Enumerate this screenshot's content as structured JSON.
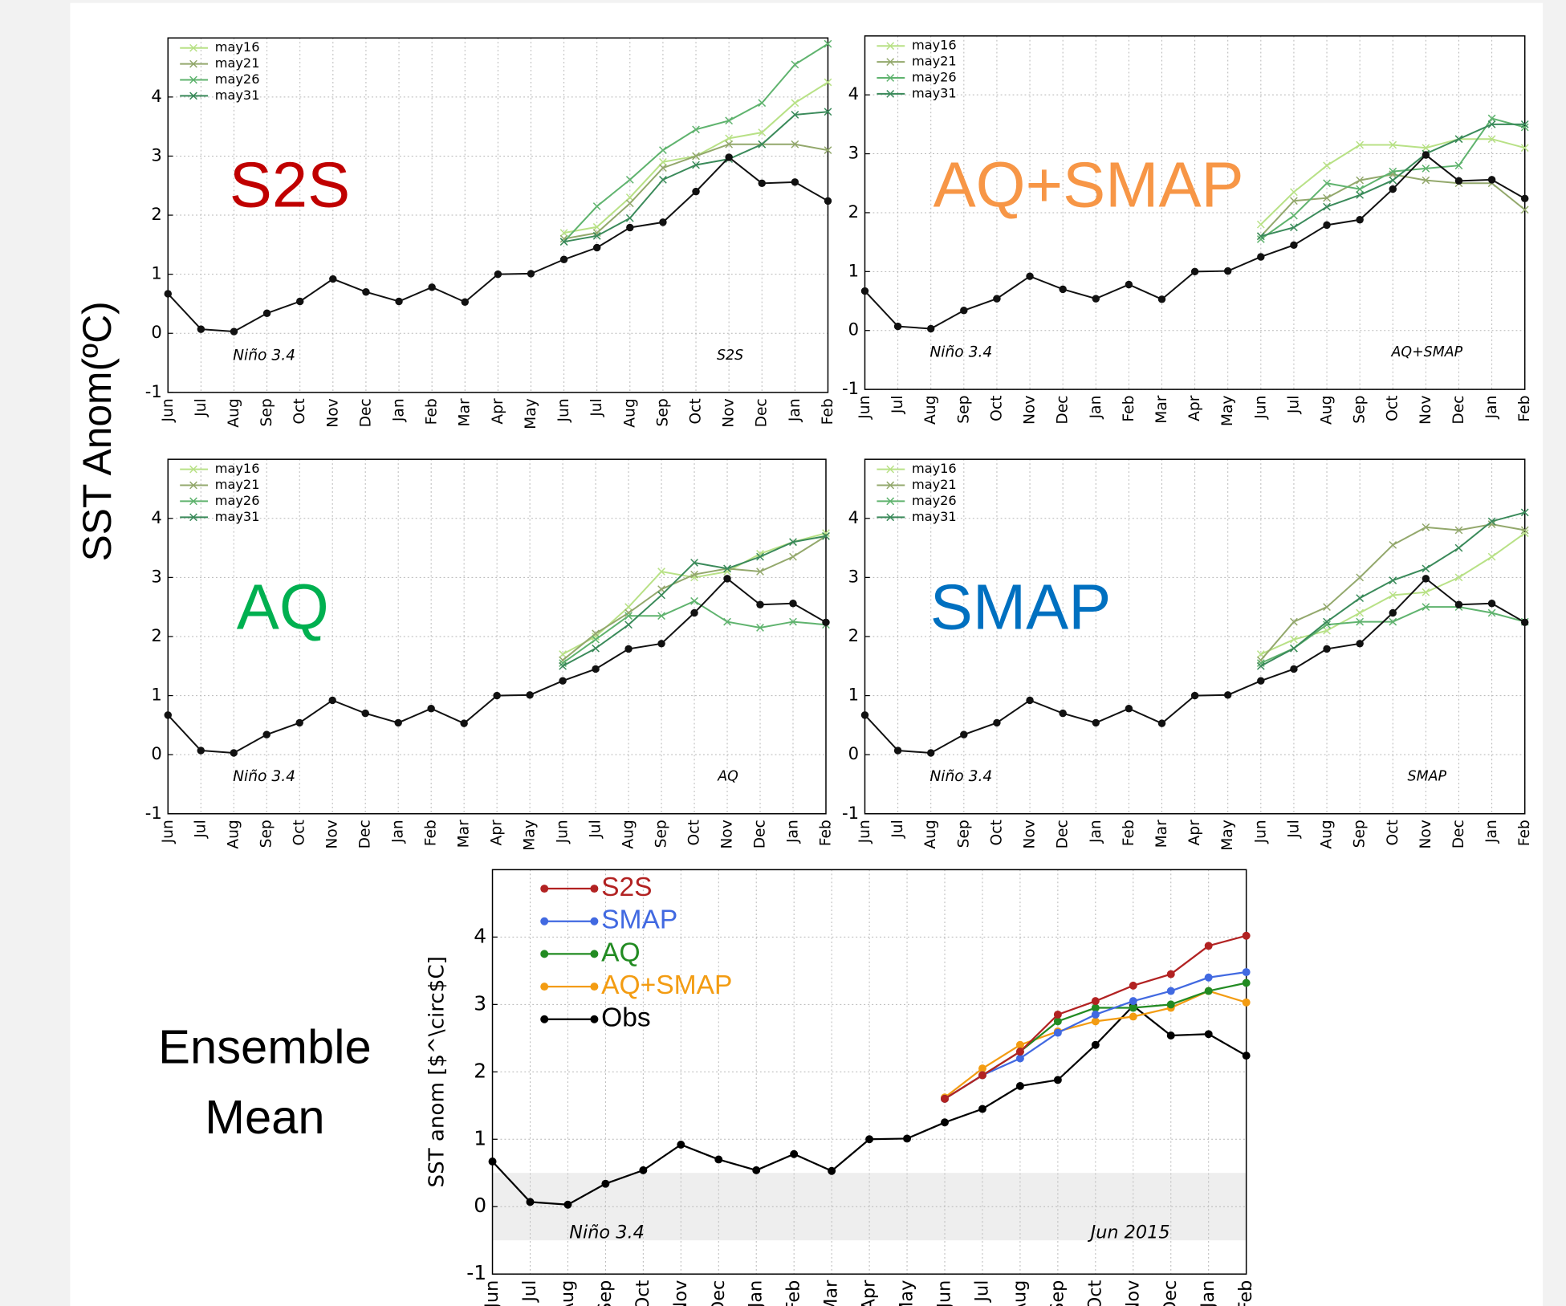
{
  "y_label": "SST Anom(ºC)",
  "side_label": "Ensemble Mean",
  "chart_data": [
    {
      "type": "line",
      "panel_label": "S2S",
      "panel_label_color": "#c00000",
      "annotations": [
        "Niño 3.4",
        "S2S"
      ],
      "categories": [
        "Jun",
        "Jul",
        "Aug",
        "Sep",
        "Oct",
        "Nov",
        "Dec",
        "Jan",
        "Feb",
        "Mar",
        "Apr",
        "May",
        "Jun",
        "Jul",
        "Aug",
        "Sep",
        "Oct",
        "Nov",
        "Dec",
        "Jan",
        "Feb"
      ],
      "ylim": [
        -1,
        5
      ],
      "yticks": [
        -1,
        0,
        1,
        2,
        3,
        4
      ],
      "grid": true,
      "obs": {
        "color": "#111111",
        "values": [
          0.67,
          0.07,
          0.03,
          0.34,
          0.54,
          0.92,
          0.7,
          0.54,
          0.78,
          0.53,
          1.0,
          1.01,
          1.25,
          1.45,
          1.79,
          1.88,
          2.4,
          2.98,
          2.54,
          2.56,
          2.24
        ]
      },
      "series": [
        {
          "name": "may16",
          "color": "#b8e186",
          "values": [
            null,
            null,
            null,
            null,
            null,
            null,
            null,
            null,
            null,
            null,
            null,
            null,
            1.7,
            1.8,
            2.3,
            2.9,
            3.0,
            3.3,
            3.4,
            3.9,
            4.25
          ]
        },
        {
          "name": "may21",
          "color": "#93a86c",
          "values": [
            null,
            null,
            null,
            null,
            null,
            null,
            null,
            null,
            null,
            null,
            null,
            null,
            1.6,
            1.7,
            2.2,
            2.8,
            3.0,
            3.2,
            3.2,
            3.2,
            3.1
          ]
        },
        {
          "name": "may26",
          "color": "#5fb36e",
          "values": [
            null,
            null,
            null,
            null,
            null,
            null,
            null,
            null,
            null,
            null,
            null,
            null,
            1.55,
            2.15,
            2.6,
            3.1,
            3.45,
            3.6,
            3.9,
            4.55,
            4.9
          ]
        },
        {
          "name": "may31",
          "color": "#3a8a5a",
          "values": [
            null,
            null,
            null,
            null,
            null,
            null,
            null,
            null,
            null,
            null,
            null,
            null,
            1.55,
            1.65,
            1.95,
            2.6,
            2.85,
            2.95,
            3.2,
            3.7,
            3.75
          ]
        }
      ]
    },
    {
      "type": "line",
      "panel_label": "AQ+SMAP",
      "panel_label_color": "#f79646",
      "annotations": [
        "Niño 3.4",
        "AQ+SMAP"
      ],
      "categories": [
        "Jun",
        "Jul",
        "Aug",
        "Sep",
        "Oct",
        "Nov",
        "Dec",
        "Jan",
        "Feb",
        "Mar",
        "Apr",
        "May",
        "Jun",
        "Jul",
        "Aug",
        "Sep",
        "Oct",
        "Nov",
        "Dec",
        "Jan",
        "Feb"
      ],
      "ylim": [
        -1,
        5
      ],
      "yticks": [
        -1,
        0,
        1,
        2,
        3,
        4
      ],
      "grid": true,
      "obs": {
        "color": "#111111",
        "values": [
          0.67,
          0.07,
          0.03,
          0.34,
          0.54,
          0.92,
          0.7,
          0.54,
          0.78,
          0.53,
          1.0,
          1.01,
          1.25,
          1.45,
          1.79,
          1.88,
          2.4,
          2.98,
          2.54,
          2.56,
          2.24
        ]
      },
      "series": [
        {
          "name": "may16",
          "color": "#b8e186",
          "values": [
            null,
            null,
            null,
            null,
            null,
            null,
            null,
            null,
            null,
            null,
            null,
            null,
            1.8,
            2.35,
            2.8,
            3.15,
            3.15,
            3.1,
            3.25,
            3.25,
            3.1
          ]
        },
        {
          "name": "may21",
          "color": "#93a86c",
          "values": [
            null,
            null,
            null,
            null,
            null,
            null,
            null,
            null,
            null,
            null,
            null,
            null,
            1.6,
            2.2,
            2.25,
            2.55,
            2.65,
            2.55,
            2.5,
            2.5,
            2.05
          ]
        },
        {
          "name": "may26",
          "color": "#5fb36e",
          "values": [
            null,
            null,
            null,
            null,
            null,
            null,
            null,
            null,
            null,
            null,
            null,
            null,
            1.55,
            1.95,
            2.5,
            2.4,
            2.7,
            2.75,
            2.8,
            3.6,
            3.45
          ]
        },
        {
          "name": "may31",
          "color": "#3a8a5a",
          "values": [
            null,
            null,
            null,
            null,
            null,
            null,
            null,
            null,
            null,
            null,
            null,
            null,
            1.6,
            1.75,
            2.1,
            2.3,
            2.55,
            3.0,
            3.25,
            3.5,
            3.5
          ]
        }
      ]
    },
    {
      "type": "line",
      "panel_label": "AQ",
      "panel_label_color": "#00b050",
      "annotations": [
        "Niño 3.4",
        "AQ"
      ],
      "categories": [
        "Jun",
        "Jul",
        "Aug",
        "Sep",
        "Oct",
        "Nov",
        "Dec",
        "Jan",
        "Feb",
        "Mar",
        "Apr",
        "May",
        "Jun",
        "Jul",
        "Aug",
        "Sep",
        "Oct",
        "Nov",
        "Dec",
        "Jan",
        "Feb"
      ],
      "ylim": [
        -1,
        5
      ],
      "yticks": [
        -1,
        0,
        1,
        2,
        3,
        4
      ],
      "grid": true,
      "obs": {
        "color": "#111111",
        "values": [
          0.67,
          0.07,
          0.03,
          0.34,
          0.54,
          0.92,
          0.7,
          0.54,
          0.78,
          0.53,
          1.0,
          1.01,
          1.25,
          1.45,
          1.79,
          1.88,
          2.4,
          2.98,
          2.54,
          2.56,
          2.24
        ]
      },
      "series": [
        {
          "name": "may16",
          "color": "#b8e186",
          "values": [
            null,
            null,
            null,
            null,
            null,
            null,
            null,
            null,
            null,
            null,
            null,
            null,
            1.7,
            2.0,
            2.5,
            3.1,
            3.0,
            3.1,
            3.4,
            3.6,
            3.75
          ]
        },
        {
          "name": "may21",
          "color": "#93a86c",
          "values": [
            null,
            null,
            null,
            null,
            null,
            null,
            null,
            null,
            null,
            null,
            null,
            null,
            1.6,
            2.05,
            2.4,
            2.8,
            3.05,
            3.15,
            3.1,
            3.35,
            3.7
          ]
        },
        {
          "name": "may26",
          "color": "#5fb36e",
          "values": [
            null,
            null,
            null,
            null,
            null,
            null,
            null,
            null,
            null,
            null,
            null,
            null,
            1.55,
            1.95,
            2.35,
            2.35,
            2.6,
            2.25,
            2.15,
            2.25,
            2.2
          ]
        },
        {
          "name": "may31",
          "color": "#3a8a5a",
          "values": [
            null,
            null,
            null,
            null,
            null,
            null,
            null,
            null,
            null,
            null,
            null,
            null,
            1.5,
            1.8,
            2.2,
            2.7,
            3.25,
            3.15,
            3.35,
            3.6,
            3.7
          ]
        }
      ]
    },
    {
      "type": "line",
      "panel_label": "SMAP",
      "panel_label_color": "#0070c0",
      "annotations": [
        "Niño 3.4",
        "SMAP"
      ],
      "categories": [
        "Jun",
        "Jul",
        "Aug",
        "Sep",
        "Oct",
        "Nov",
        "Dec",
        "Jan",
        "Feb",
        "Mar",
        "Apr",
        "May",
        "Jun",
        "Jul",
        "Aug",
        "Sep",
        "Oct",
        "Nov",
        "Dec",
        "Jan",
        "Feb"
      ],
      "ylim": [
        -1,
        5
      ],
      "yticks": [
        -1,
        0,
        1,
        2,
        3,
        4
      ],
      "grid": true,
      "obs": {
        "color": "#111111",
        "values": [
          0.67,
          0.07,
          0.03,
          0.34,
          0.54,
          0.92,
          0.7,
          0.54,
          0.78,
          0.53,
          1.0,
          1.01,
          1.25,
          1.45,
          1.79,
          1.88,
          2.4,
          2.98,
          2.54,
          2.56,
          2.24
        ]
      },
      "series": [
        {
          "name": "may16",
          "color": "#b8e186",
          "values": [
            null,
            null,
            null,
            null,
            null,
            null,
            null,
            null,
            null,
            null,
            null,
            null,
            1.7,
            1.95,
            2.1,
            2.4,
            2.7,
            2.75,
            3.0,
            3.35,
            3.75
          ]
        },
        {
          "name": "may21",
          "color": "#93a86c",
          "values": [
            null,
            null,
            null,
            null,
            null,
            null,
            null,
            null,
            null,
            null,
            null,
            null,
            1.6,
            2.25,
            2.5,
            3.0,
            3.55,
            3.85,
            3.8,
            3.9,
            3.8
          ]
        },
        {
          "name": "may26",
          "color": "#5fb36e",
          "values": [
            null,
            null,
            null,
            null,
            null,
            null,
            null,
            null,
            null,
            null,
            null,
            null,
            1.55,
            1.8,
            2.2,
            2.25,
            2.25,
            2.5,
            2.5,
            2.4,
            2.25
          ]
        },
        {
          "name": "may31",
          "color": "#3a8a5a",
          "values": [
            null,
            null,
            null,
            null,
            null,
            null,
            null,
            null,
            null,
            null,
            null,
            null,
            1.5,
            1.8,
            2.25,
            2.65,
            2.95,
            3.15,
            3.5,
            3.95,
            4.1
          ]
        }
      ]
    },
    {
      "type": "ensemble",
      "y_label": "SST anom [$^\\circ$C]",
      "annotations": [
        "Niño 3.4",
        "Jun 2015"
      ],
      "categories": [
        "Jun",
        "Jul",
        "Aug",
        "Sep",
        "Oct",
        "Nov",
        "Dec",
        "Jan",
        "Feb",
        "Mar",
        "Apr",
        "May",
        "Jun",
        "Jul",
        "Aug",
        "Sep",
        "Oct",
        "Nov",
        "Dec",
        "Jan",
        "Feb"
      ],
      "ylim": [
        -1,
        5
      ],
      "yticks": [
        -1,
        0,
        1,
        2,
        3,
        4
      ],
      "grid": true,
      "shade": [
        -0.5,
        0.5
      ],
      "series": [
        {
          "name": "S2S",
          "color": "#b22222",
          "values": [
            null,
            null,
            null,
            null,
            null,
            null,
            null,
            null,
            null,
            null,
            null,
            null,
            1.6,
            1.95,
            2.3,
            2.85,
            3.05,
            3.28,
            3.45,
            3.87,
            4.02
          ]
        },
        {
          "name": "SMAP",
          "color": "#4169e1",
          "values": [
            null,
            null,
            null,
            null,
            null,
            null,
            null,
            null,
            null,
            null,
            null,
            null,
            1.6,
            1.95,
            2.2,
            2.58,
            2.85,
            3.05,
            3.2,
            3.4,
            3.48
          ]
        },
        {
          "name": "AQ",
          "color": "#228b22",
          "values": [
            null,
            null,
            null,
            null,
            null,
            null,
            null,
            null,
            null,
            null,
            null,
            null,
            1.6,
            1.95,
            2.3,
            2.75,
            2.95,
            2.95,
            3.0,
            3.2,
            3.32
          ]
        },
        {
          "name": "AQ+SMAP",
          "color": "#f39c12",
          "values": [
            null,
            null,
            null,
            null,
            null,
            null,
            null,
            null,
            null,
            null,
            null,
            null,
            1.62,
            2.05,
            2.4,
            2.6,
            2.75,
            2.82,
            2.95,
            3.2,
            3.03
          ]
        },
        {
          "name": "Obs",
          "color": "#000000",
          "values": [
            0.67,
            0.07,
            0.03,
            0.34,
            0.54,
            0.92,
            0.7,
            0.54,
            0.78,
            0.53,
            1.0,
            1.01,
            1.25,
            1.45,
            1.79,
            1.88,
            2.4,
            2.98,
            2.54,
            2.56,
            2.24
          ]
        }
      ]
    }
  ]
}
